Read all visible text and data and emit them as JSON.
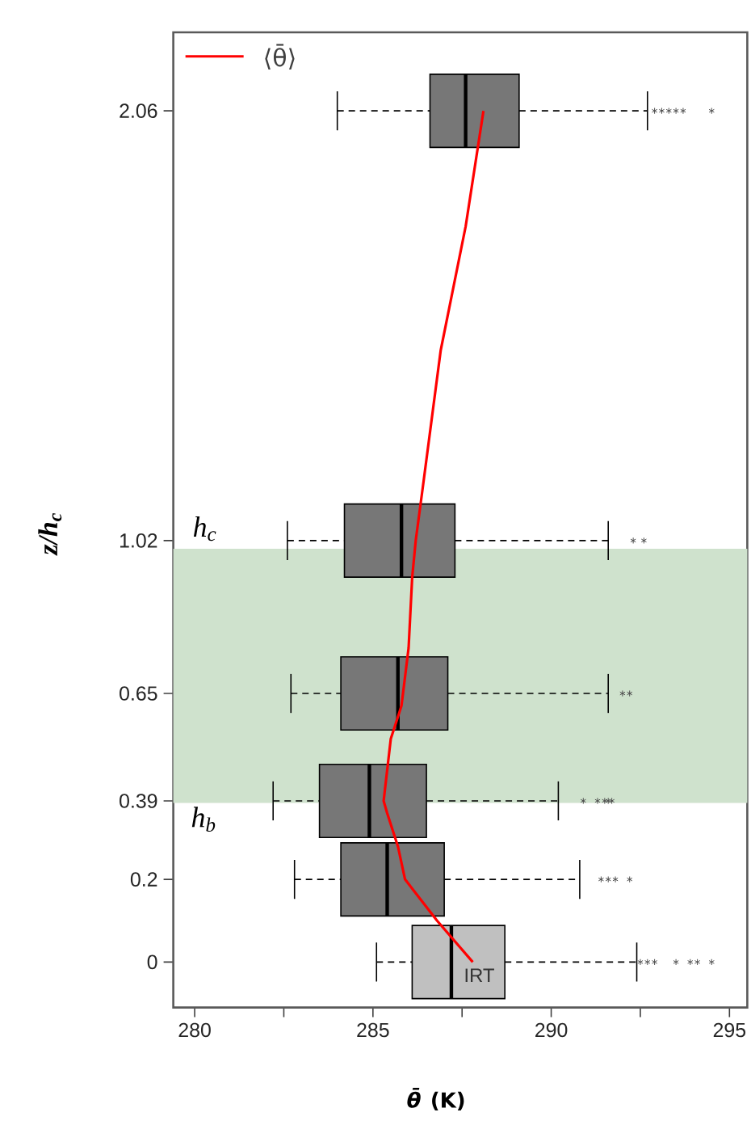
{
  "chart_data": {
    "type": "box",
    "orientation": "horizontal",
    "xlabel": "*θ̄* (K)",
    "ylabel": "z/h$_{c}$",
    "xlim": [
      279.4,
      295.5
    ],
    "xticks": [
      280,
      {
        "value": 282.5,
        "label": null
      },
      285,
      {
        "value": 287.5,
        "label": null
      },
      290,
      {
        "value": 292.5,
        "label": null
      },
      295
    ],
    "ylim": [
      -0.11,
      2.25
    ],
    "yticks": [
      0,
      0.2,
      0.39,
      0.65,
      1.02,
      2.06
    ],
    "series": [
      {
        "type": "box",
        "x": [
          0,
          0.2,
          0.39,
          0.65,
          1.02,
          2.06
        ],
        "colors": [
          "#c0c0c0",
          "#777777",
          "#777777",
          "#777777",
          "#777777",
          "#777777"
        ],
        "marker": "star",
        "boxes": [
          {
            "low": 285.1,
            "q1": 286.1,
            "median": 287.2,
            "q3": 288.7,
            "high": 292.4,
            "outliers": [
              292.5,
              292.7,
              292.9,
              293.5,
              293.9,
              294.1,
              294.5
            ]
          },
          {
            "low": 282.8,
            "q1": 284.1,
            "median": 285.4,
            "q3": 287.0,
            "high": 290.8,
            "outliers": [
              291.4,
              291.6,
              291.8,
              292.2
            ]
          },
          {
            "low": 282.2,
            "q1": 283.5,
            "median": 284.9,
            "q3": 286.5,
            "high": 290.2,
            "outliers": [
              290.9,
              291.3,
              291.5,
              291.6,
              291.7
            ]
          },
          {
            "low": 282.7,
            "q1": 284.1,
            "median": 285.7,
            "q3": 287.1,
            "high": 291.6,
            "outliers": [
              292.0,
              292.2
            ]
          },
          {
            "low": 282.6,
            "q1": 284.2,
            "median": 285.8,
            "q3": 287.3,
            "high": 291.6,
            "outliers": [
              292.3,
              292.6
            ]
          },
          {
            "low": 284.0,
            "q1": 286.6,
            "median": 287.6,
            "q3": 289.1,
            "high": 292.7,
            "outliers": [
              292.9,
              293.1,
              293.3,
              293.5,
              293.7,
              294.5
            ]
          }
        ]
      },
      {
        "type": "line",
        "name": "⟨θ̄⟩",
        "color": "#ff0000",
        "x": [
          0,
          0.1,
          0.2,
          0.28,
          0.36,
          0.39,
          0.54,
          0.62,
          0.76,
          0.93,
          1.02,
          1.15,
          1.48,
          1.78,
          2.06
        ],
        "values": [
          287.8,
          286.8,
          285.9,
          285.7,
          285.4,
          285.3,
          285.5,
          285.8,
          286.0,
          286.1,
          286.2,
          286.4,
          286.9,
          287.6,
          288.1
        ]
      }
    ],
    "bands": [
      {
        "axis": "y",
        "from": 0.385,
        "to": 1.0,
        "color": "#cfe2cd"
      }
    ],
    "annotations": [
      "h$_{c}$",
      "h$_{b}$",
      "IRT"
    ],
    "legend": "top left"
  }
}
